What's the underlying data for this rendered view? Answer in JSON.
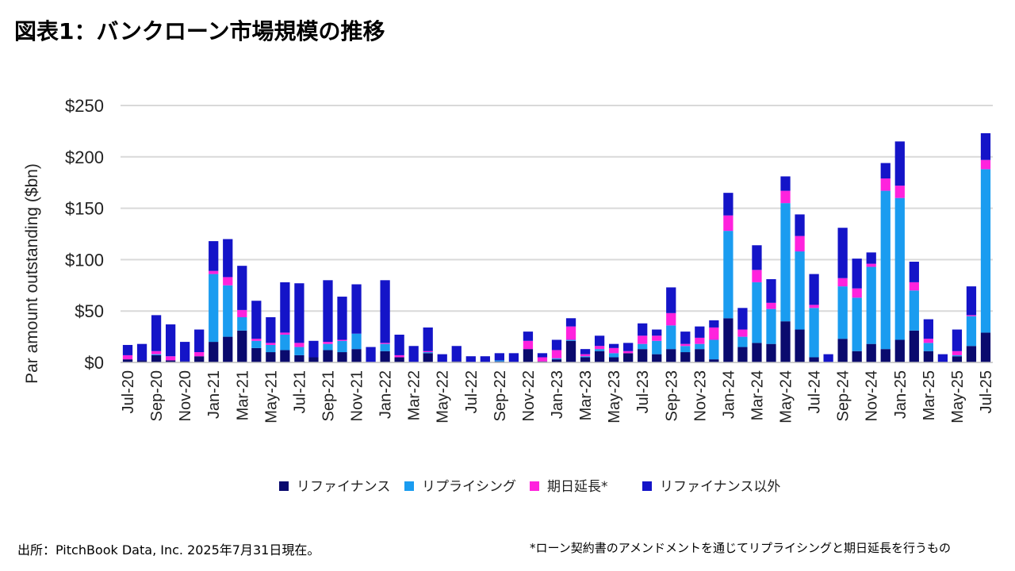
{
  "title": "図表1：バンクローン市場規模の推移",
  "source": "出所：PitchBook Data, Inc.  2025年7月31日現在。",
  "footnote": "*ローン契約書のアメンドメントを通じてリプライシングと期日延長を行うもの",
  "colors": {
    "refinance": "#0a0a6e",
    "repricing": "#1a9cf0",
    "extension": "#ff22dd",
    "non_refinance": "#1414c8",
    "grid": "#d9d9d9"
  },
  "chart_data": {
    "type": "bar",
    "stacked": true,
    "ylabel": "Par amount outstanding ($bn)",
    "xlabel": "",
    "ylim": [
      0,
      250
    ],
    "yticks": [
      0,
      50,
      100,
      150,
      200,
      250
    ],
    "ytick_labels": [
      "$0",
      "$50",
      "$100",
      "$150",
      "$200",
      "$250"
    ],
    "grid": true,
    "legend_position": "bottom",
    "x_tick_labels": [
      "Jul-20",
      "Sep-20",
      "Nov-20",
      "Jan-21",
      "Mar-21",
      "May-21",
      "Jul-21",
      "Sep-21",
      "Nov-21",
      "Jan-22",
      "Mar-22",
      "May-22",
      "Jul-22",
      "Sep-22",
      "Nov-22",
      "Jan-23",
      "Mar-23",
      "May-23",
      "Jul-23",
      "Sep-23",
      "Nov-23",
      "Jan-24",
      "Mar-24",
      "May-24",
      "Jul-24",
      "Sep-24",
      "Nov-24",
      "Jan-25",
      "Mar-25",
      "May-25",
      "Jul-25"
    ],
    "categories": [
      "Jul-20",
      "Aug-20",
      "Sep-20",
      "Oct-20",
      "Nov-20",
      "Dec-20",
      "Jan-21",
      "Feb-21",
      "Mar-21",
      "Apr-21",
      "May-21",
      "Jun-21",
      "Jul-21",
      "Aug-21",
      "Sep-21",
      "Oct-21",
      "Nov-21",
      "Dec-21",
      "Jan-22",
      "Feb-22",
      "Mar-22",
      "Apr-22",
      "May-22",
      "Jun-22",
      "Jul-22",
      "Aug-22",
      "Sep-22",
      "Oct-22",
      "Nov-22",
      "Dec-22",
      "Jan-23",
      "Feb-23",
      "Mar-23",
      "Apr-23",
      "May-23",
      "Jun-23",
      "Jul-23",
      "Aug-23",
      "Sep-23",
      "Oct-23",
      "Nov-23",
      "Dec-23",
      "Jan-24",
      "Feb-24",
      "Mar-24",
      "Apr-24",
      "May-24",
      "Jun-24",
      "Jul-24",
      "Aug-24",
      "Sep-24",
      "Oct-24",
      "Nov-24",
      "Dec-24",
      "Jan-25",
      "Feb-25",
      "Mar-25",
      "Apr-25",
      "May-25",
      "Jun-25",
      "Jul-25"
    ],
    "series": [
      {
        "name": "リファイナンス",
        "color_key": "refinance",
        "values": [
          3,
          2,
          7,
          2,
          1,
          6,
          20,
          25,
          31,
          14,
          10,
          12,
          7,
          5,
          12,
          10,
          13,
          0,
          11,
          5,
          0,
          9,
          0,
          1,
          0,
          0,
          1,
          0,
          13,
          1,
          3,
          21,
          5,
          11,
          5,
          9,
          13,
          8,
          13,
          10,
          13,
          3,
          43,
          15,
          19,
          18,
          40,
          32,
          5,
          0,
          23,
          11,
          18,
          13,
          22,
          31,
          11,
          0,
          6,
          16,
          29
        ]
      },
      {
        "name": "リプライシング",
        "color_key": "repricing",
        "values": [
          0,
          0,
          1,
          0,
          0,
          0,
          66,
          50,
          13,
          7,
          7,
          15,
          8,
          0,
          6,
          11,
          15,
          0,
          7,
          0,
          0,
          1,
          0,
          0,
          0,
          0,
          1,
          0,
          0,
          0,
          1,
          1,
          1,
          2,
          4,
          0,
          5,
          13,
          23,
          6,
          5,
          19,
          85,
          10,
          59,
          34,
          115,
          76,
          48,
          0,
          51,
          52,
          75,
          154,
          138,
          39,
          8,
          0,
          1,
          29,
          159
        ]
      },
      {
        "name": "期日延長*",
        "color_key": "extension",
        "values": [
          4,
          0,
          3,
          4,
          0,
          4,
          3,
          8,
          7,
          2,
          2,
          2,
          4,
          0,
          2,
          1,
          0,
          0,
          1,
          2,
          0,
          1,
          0,
          0,
          0,
          0,
          0,
          0,
          8,
          4,
          8,
          13,
          2,
          3,
          5,
          2,
          8,
          5,
          12,
          2,
          6,
          12,
          15,
          7,
          12,
          6,
          12,
          15,
          3,
          0,
          8,
          9,
          3,
          12,
          12,
          8,
          4,
          0,
          4,
          1,
          9
        ]
      },
      {
        "name": "リファイナンス以外",
        "color_key": "non_refinance",
        "values": [
          10,
          16,
          35,
          31,
          19,
          22,
          29,
          37,
          43,
          37,
          25,
          49,
          58,
          16,
          60,
          42,
          48,
          15,
          61,
          20,
          16,
          23,
          8,
          15,
          6,
          6,
          7,
          9,
          9,
          4,
          10,
          8,
          5,
          10,
          4,
          8,
          12,
          6,
          25,
          12,
          11,
          7,
          22,
          21,
          24,
          23,
          14,
          21,
          30,
          8,
          49,
          29,
          11,
          15,
          43,
          20,
          19,
          8,
          21,
          28,
          26
        ]
      }
    ]
  }
}
